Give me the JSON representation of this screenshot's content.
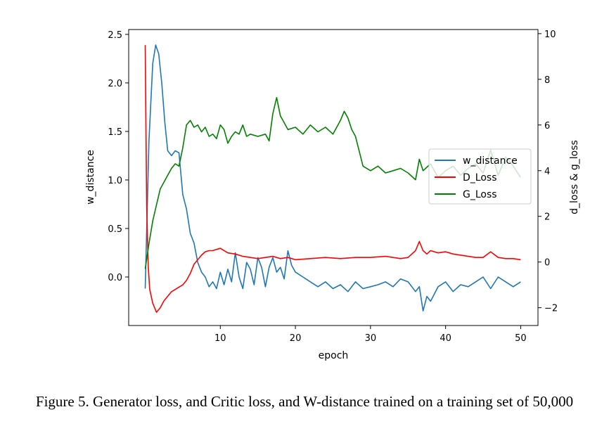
{
  "caption": "Figure 5. Generator loss, and Critic loss, and W-distance trained on a training set of 50,000",
  "chart_data": {
    "type": "line",
    "title": "",
    "xlabel": "epoch",
    "ylabel_left": "w_distance",
    "ylabel_right": "d_loss & g_loss",
    "xlim": [
      -2.2,
      52.3
    ],
    "ylim_left": [
      -0.5,
      2.55
    ],
    "ylim_right": [
      -2.78,
      10.18
    ],
    "xticks": [
      10,
      20,
      30,
      40,
      50
    ],
    "yticks_left": [
      "0.0",
      "0.5",
      "1.0",
      "1.5",
      "2.0",
      "2.5"
    ],
    "yticks_right": [
      "−2",
      "0",
      "2",
      "4",
      "6",
      "8",
      "10"
    ],
    "yticks_left_values": [
      0.0,
      0.5,
      1.0,
      1.5,
      2.0,
      2.5
    ],
    "yticks_right_values": [
      -2,
      0,
      2,
      4,
      6,
      8,
      10
    ],
    "grid": false,
    "legend_position": "center-right",
    "series": [
      {
        "name": "w_distance",
        "axis": "left",
        "color": "#1f77b4",
        "x": [
          0,
          0.5,
          1,
          1.4,
          1.8,
          2.2,
          2.6,
          3,
          3.5,
          4,
          4.5,
          5,
          5.5,
          6,
          6.5,
          7,
          7.5,
          8,
          8.5,
          9,
          9.5,
          10,
          10.5,
          11,
          11.5,
          12,
          12.5,
          13,
          13.5,
          14,
          14.5,
          15,
          15.5,
          16,
          16.5,
          17,
          17.5,
          18,
          18.5,
          19,
          19.5,
          20,
          21,
          22,
          23,
          24,
          25,
          26,
          27,
          28,
          29,
          30,
          31,
          32,
          33,
          34,
          35,
          36,
          36.5,
          37,
          37.5,
          38,
          39,
          40,
          41,
          42,
          43,
          44,
          45,
          46,
          47,
          48,
          49,
          50
        ],
        "y": [
          -0.12,
          1.4,
          2.2,
          2.39,
          2.3,
          2.0,
          1.6,
          1.3,
          1.25,
          1.3,
          1.28,
          0.85,
          0.7,
          0.45,
          0.35,
          0.15,
          0.05,
          0.0,
          -0.1,
          -0.05,
          -0.12,
          0.05,
          -0.08,
          0.08,
          -0.05,
          0.25,
          0.0,
          -0.12,
          0.15,
          0.08,
          -0.08,
          0.2,
          0.1,
          -0.1,
          0.1,
          0.2,
          0.05,
          0.1,
          -0.02,
          0.27,
          0.12,
          0.05,
          0.0,
          -0.05,
          -0.1,
          -0.05,
          -0.12,
          -0.08,
          -0.15,
          -0.05,
          -0.12,
          -0.1,
          -0.08,
          -0.05,
          -0.1,
          -0.02,
          -0.05,
          -0.15,
          -0.1,
          -0.35,
          -0.2,
          -0.25,
          -0.1,
          -0.05,
          -0.15,
          -0.08,
          -0.1,
          -0.05,
          0.0,
          -0.12,
          0.0,
          -0.05,
          -0.1,
          -0.05
        ]
      },
      {
        "name": "D_Loss",
        "axis": "right",
        "color": "#ff0000",
        "x": [
          0,
          0.2,
          0.4,
          0.6,
          1,
          1.5,
          2,
          2.5,
          3,
          3.5,
          4,
          4.5,
          5,
          5.5,
          6,
          6.5,
          7,
          7.5,
          8,
          8.5,
          9,
          9.5,
          10,
          11,
          12,
          13,
          14,
          15,
          16,
          17,
          18,
          19,
          20,
          22,
          24,
          26,
          28,
          30,
          32,
          34,
          35,
          36,
          36.5,
          37,
          37.5,
          38,
          39,
          40,
          41,
          42,
          43,
          44,
          45,
          46,
          47,
          48,
          49,
          50
        ],
        "y": [
          9.5,
          2.4,
          -0.2,
          -1.2,
          -1.8,
          -2.2,
          -2.0,
          -1.7,
          -1.5,
          -1.3,
          -1.2,
          -1.1,
          -1.0,
          -0.8,
          -0.5,
          -0.1,
          0.1,
          0.3,
          0.45,
          0.5,
          0.5,
          0.55,
          0.6,
          0.4,
          0.35,
          0.25,
          0.2,
          0.15,
          0.2,
          0.25,
          0.15,
          0.2,
          0.1,
          0.15,
          0.2,
          0.15,
          0.2,
          0.2,
          0.25,
          0.15,
          0.2,
          0.5,
          0.9,
          0.5,
          0.35,
          0.5,
          0.4,
          0.45,
          0.35,
          0.3,
          0.25,
          0.2,
          0.2,
          0.45,
          0.2,
          0.15,
          0.15,
          0.1
        ]
      },
      {
        "name": "G_Loss",
        "axis": "right",
        "color": "#008000",
        "x": [
          0,
          0.5,
          1,
          1.5,
          2,
          2.5,
          3,
          3.5,
          4,
          4.5,
          5,
          5.5,
          6,
          6.5,
          7,
          7.5,
          8,
          8.5,
          9,
          9.5,
          10,
          10.5,
          11,
          11.5,
          12,
          12.5,
          13,
          13.5,
          14,
          15,
          16,
          16.5,
          17,
          17.5,
          18,
          18.5,
          19,
          20,
          21,
          22,
          23,
          24,
          25,
          26,
          26.5,
          27,
          27.5,
          28,
          29,
          30,
          31,
          32,
          33,
          34,
          35,
          36,
          36.5,
          37,
          38,
          39,
          40,
          41,
          42,
          43,
          44,
          45,
          46,
          47,
          48,
          49,
          50
        ],
        "y": [
          -0.3,
          0.8,
          1.8,
          2.5,
          3.2,
          3.5,
          3.8,
          4.1,
          4.3,
          4.2,
          5.0,
          6.0,
          6.2,
          5.9,
          6.0,
          5.7,
          5.9,
          5.5,
          5.6,
          5.4,
          6.0,
          5.8,
          5.2,
          5.5,
          5.7,
          5.6,
          6.0,
          5.5,
          5.6,
          5.5,
          5.6,
          5.3,
          6.5,
          7.2,
          6.4,
          6.1,
          5.8,
          5.9,
          5.6,
          6.0,
          5.7,
          5.9,
          5.6,
          6.2,
          6.6,
          6.3,
          5.8,
          5.5,
          4.2,
          4.0,
          4.2,
          3.9,
          4.0,
          4.1,
          3.9,
          3.6,
          4.5,
          4.0,
          4.3,
          3.7,
          4.0,
          4.2,
          3.8,
          4.1,
          4.3,
          3.9,
          4.9,
          3.8,
          4.6,
          4.2,
          3.7
        ]
      }
    ]
  }
}
